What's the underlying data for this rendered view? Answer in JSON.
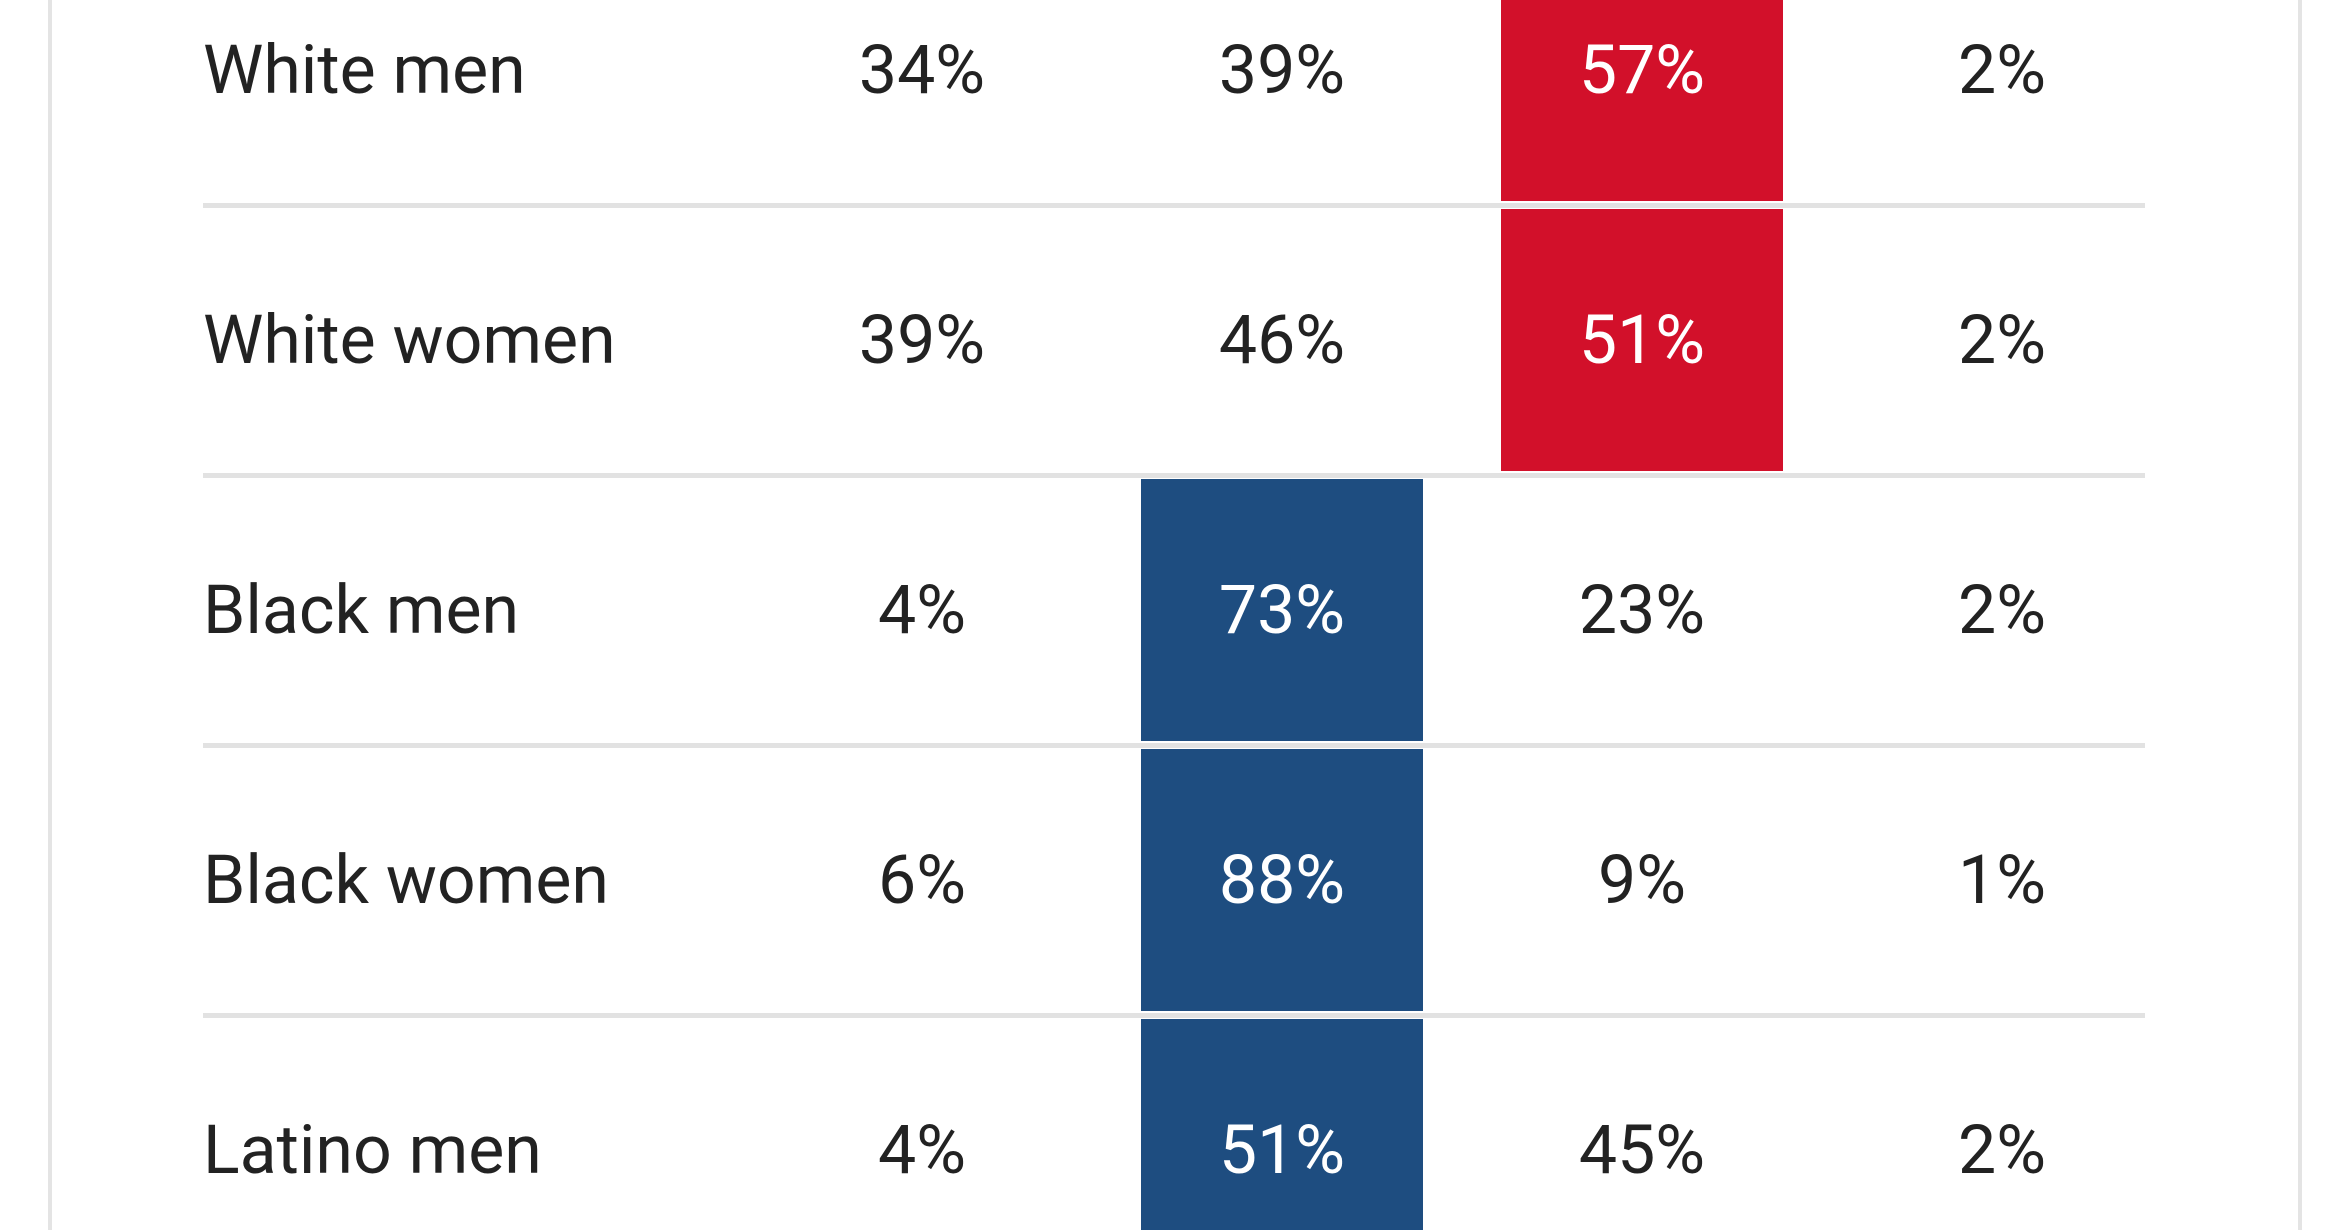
{
  "table": {
    "rows": [
      {
        "label": "White men",
        "cells": [
          "34%",
          "39%",
          "57%",
          "2%"
        ]
      },
      {
        "label": "White women",
        "cells": [
          "39%",
          "46%",
          "51%",
          "2%"
        ]
      },
      {
        "label": "Black men",
        "cells": [
          "4%",
          "73%",
          "23%",
          "2%"
        ]
      },
      {
        "label": "Black women",
        "cells": [
          "6%",
          "88%",
          "9%",
          "1%"
        ]
      },
      {
        "label": "Latino men",
        "cells": [
          "4%",
          "51%",
          "45%",
          "2%"
        ]
      }
    ]
  }
}
